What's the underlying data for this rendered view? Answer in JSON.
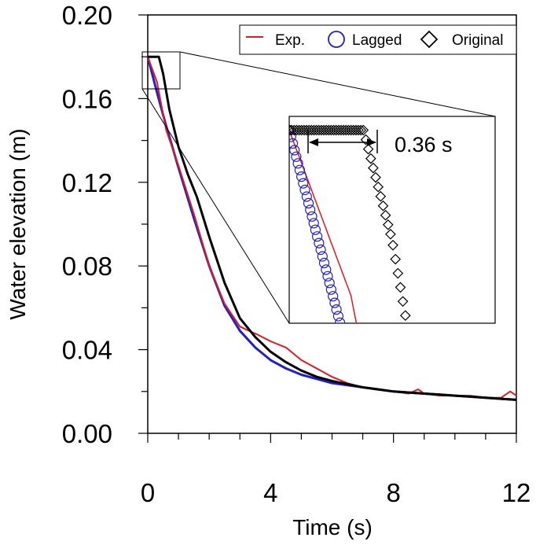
{
  "chart_data": {
    "type": "line",
    "xlabel": "Time (s)",
    "ylabel": "Water elevation (m)",
    "xlim": [
      0,
      12
    ],
    "ylim": [
      0,
      0.2
    ],
    "x_ticks": [
      "0",
      "4",
      "8",
      "12"
    ],
    "y_ticks": [
      "0.00",
      "0.04",
      "0.08",
      "0.12",
      "0.16",
      "0.20"
    ],
    "grid": false,
    "legend_position": "top-right",
    "series": [
      {
        "name": "Exp.",
        "color": "#e0191b",
        "marker": "line",
        "x": [
          0,
          0.3,
          0.6,
          1.0,
          1.5,
          2.0,
          2.5,
          3.0,
          3.3,
          3.6,
          4.0,
          4.5,
          5.0,
          5.5,
          6.0,
          6.5,
          7.0,
          7.5,
          8.0,
          8.5,
          8.8,
          9.0,
          9.5,
          10.0,
          10.5,
          11.0,
          11.5,
          11.8,
          12.0
        ],
        "y": [
          0.18,
          0.168,
          0.145,
          0.128,
          0.105,
          0.08,
          0.062,
          0.051,
          0.049,
          0.047,
          0.044,
          0.041,
          0.035,
          0.031,
          0.027,
          0.024,
          0.022,
          0.021,
          0.02,
          0.019,
          0.021,
          0.019,
          0.018,
          0.018,
          0.018,
          0.017,
          0.017,
          0.02,
          0.018
        ]
      },
      {
        "name": "Lagged",
        "color": "#1f1fd0",
        "marker": "circle",
        "x": [
          0,
          0.3,
          0.6,
          1.0,
          1.5,
          2.0,
          2.5,
          3.0,
          3.5,
          4.0,
          4.5,
          5.0,
          5.5,
          6.0,
          6.5,
          7.0,
          7.5,
          8.0,
          8.5,
          9.0,
          9.5,
          10.0,
          10.5,
          11.0,
          11.5,
          12.0
        ],
        "y": [
          0.18,
          0.163,
          0.147,
          0.127,
          0.103,
          0.08,
          0.061,
          0.049,
          0.041,
          0.035,
          0.031,
          0.028,
          0.026,
          0.024,
          0.023,
          0.022,
          0.021,
          0.02,
          0.0195,
          0.019,
          0.0185,
          0.018,
          0.0175,
          0.017,
          0.0165,
          0.016
        ]
      },
      {
        "name": "Original",
        "color": "#000000",
        "marker": "diamond",
        "x": [
          0,
          0.2,
          0.36,
          0.5,
          0.7,
          1.0,
          1.3,
          1.6,
          2.0,
          2.5,
          3.0,
          3.5,
          4.0,
          4.5,
          5.0,
          5.5,
          6.0,
          6.5,
          7.0,
          7.5,
          8.0,
          8.5,
          9.0,
          9.5,
          10.0,
          10.5,
          11.0,
          11.5,
          12.0
        ],
        "y": [
          0.18,
          0.18,
          0.18,
          0.172,
          0.155,
          0.137,
          0.124,
          0.113,
          0.094,
          0.072,
          0.055,
          0.046,
          0.039,
          0.034,
          0.03,
          0.027,
          0.025,
          0.0235,
          0.022,
          0.021,
          0.02,
          0.0195,
          0.019,
          0.0185,
          0.018,
          0.0175,
          0.017,
          0.0165,
          0.016
        ]
      }
    ],
    "inset": {
      "xlim": [
        0,
        1.0
      ],
      "ylim": [
        0.166,
        0.181
      ],
      "annotation": "0.36 s",
      "annotation_x_range": [
        0,
        0.36
      ]
    }
  }
}
